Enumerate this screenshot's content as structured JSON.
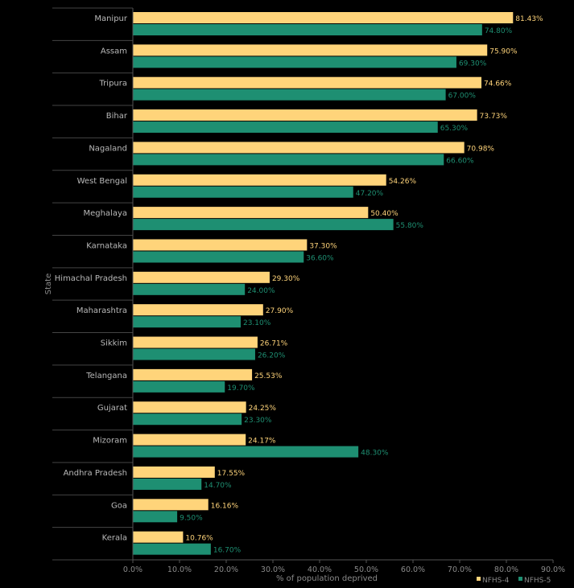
{
  "chart_data": {
    "type": "bar",
    "orientation": "horizontal",
    "xlabel": "% of population deprived",
    "ylabel": "State",
    "xlim": [
      0,
      90
    ],
    "xticks": [
      "0.0%",
      "10.0%",
      "20.0%",
      "30.0%",
      "40.0%",
      "50.0%",
      "60.0%",
      "70.0%",
      "80.0%",
      "90.0%"
    ],
    "categories": [
      "Manipur",
      "Assam",
      "Tripura",
      "Bihar",
      "Nagaland",
      "West Bengal",
      "Meghalaya",
      "Karnataka",
      "Himachal Pradesh",
      "Maharashtra",
      "Sikkim",
      "Telangana",
      "Gujarat",
      "Mizoram",
      "Andhra Pradesh",
      "Goa",
      "Kerala"
    ],
    "series": [
      {
        "name": "NFHS-4",
        "color": "#ffd47a",
        "values": [
          81.43,
          75.9,
          74.66,
          73.73,
          70.98,
          54.26,
          50.4,
          37.3,
          29.3,
          27.9,
          26.71,
          25.53,
          24.25,
          24.17,
          17.55,
          16.16,
          10.76
        ],
        "labels": [
          "81.43%",
          "75.90%",
          "74.66%",
          "73.73%",
          "70.98%",
          "54.26%",
          "50.40%",
          "37.30%",
          "29.30%",
          "27.90%",
          "26.71%",
          "25.53%",
          "24.25%",
          "24.17%",
          "17.55%",
          "16.16%",
          "10.76%"
        ]
      },
      {
        "name": "NFHS-5",
        "color": "#1e8f72",
        "values": [
          74.8,
          69.3,
          67.0,
          65.3,
          66.6,
          47.2,
          55.8,
          36.6,
          24.0,
          23.1,
          26.2,
          19.7,
          23.3,
          48.3,
          14.7,
          9.5,
          16.7
        ],
        "labels": [
          "74.80%",
          "69.30%",
          "67.00%",
          "65.30%",
          "66.60%",
          "47.20%",
          "55.80%",
          "36.60%",
          "24.00%",
          "23.10%",
          "26.20%",
          "19.70%",
          "23.30%",
          "48.30%",
          "14.70%",
          "9.50%",
          "16.70%"
        ]
      }
    ],
    "legend": {
      "position": "bottom-right"
    },
    "grid": false
  }
}
